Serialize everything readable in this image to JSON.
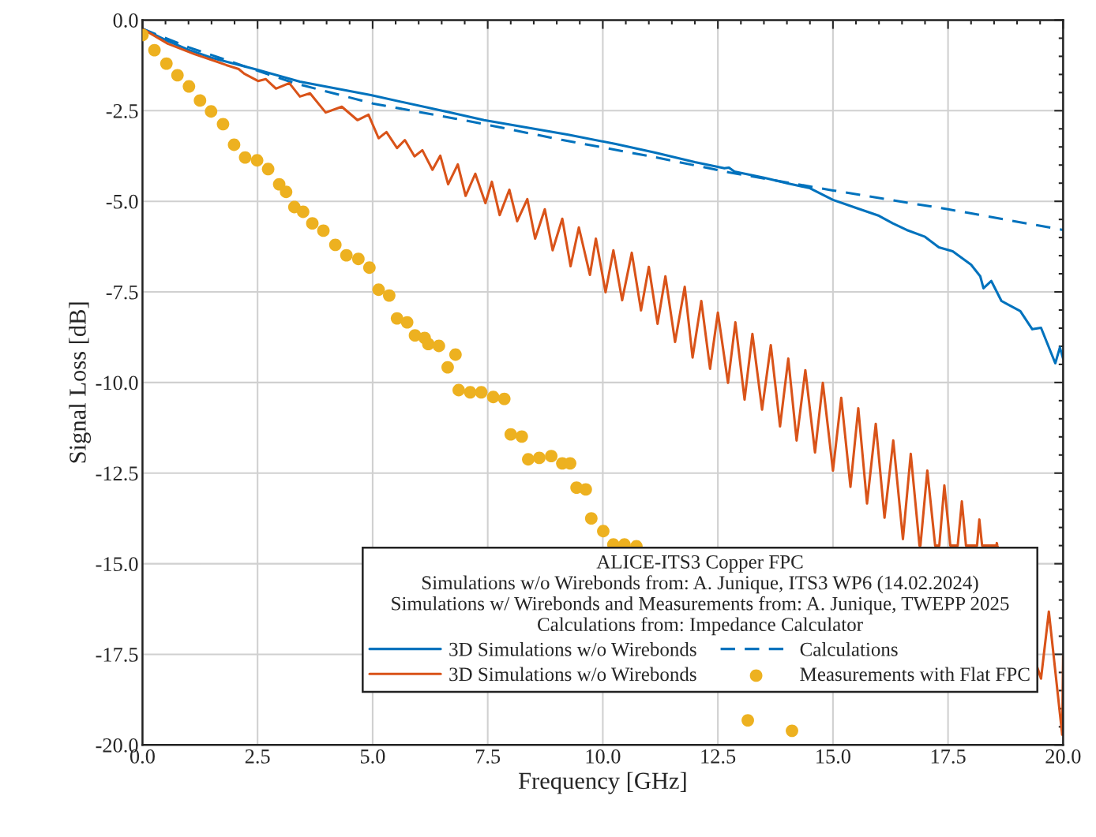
{
  "chart_data": {
    "type": "line",
    "xlabel": "Frequency [GHz]",
    "ylabel": "Signal Loss [dB]",
    "legend_title": "ALICE-ITS3 Copper FPC\nSimulations w/o Wirebonds from: A. Junique, ITS3 WP6 (14.02.2024)\nSimulations w/ Wirebonds and Measurements from: A. Junique, TWEPP 2025\nCalculations from: Impedance Calculator",
    "xlim": [
      0,
      20
    ],
    "ylim": [
      -20,
      0
    ],
    "xticks": [
      {
        "value": 0,
        "label": "0.0"
      },
      {
        "value": 2.5,
        "label": "2.5"
      },
      {
        "value": 5,
        "label": "5.0"
      },
      {
        "value": 7.5,
        "label": "7.5"
      },
      {
        "value": 10,
        "label": "10.0"
      },
      {
        "value": 12.5,
        "label": "12.5"
      },
      {
        "value": 15,
        "label": "15.0"
      },
      {
        "value": 17.5,
        "label": "17.5"
      },
      {
        "value": 20,
        "label": "20.0"
      }
    ],
    "yticks": [
      {
        "value": -20,
        "label": "-20.0"
      },
      {
        "value": -17.5,
        "label": "-17.5"
      },
      {
        "value": -15,
        "label": "-15.0"
      },
      {
        "value": -12.5,
        "label": "-12.5"
      },
      {
        "value": -10,
        "label": "-10.0"
      },
      {
        "value": -7.5,
        "label": "-7.5"
      },
      {
        "value": -5,
        "label": "-5.0"
      },
      {
        "value": -2.5,
        "label": "-2.5"
      },
      {
        "value": 0,
        "label": "0.0"
      }
    ],
    "grid": true,
    "legend": "bottom right",
    "series": [
      {
        "name": "3D Simulations w/o Wirebonds",
        "line_style": "solid",
        "color": "#0072bd",
        "x": [
          0,
          0.5,
          1.0,
          1.5,
          2.5,
          3.42,
          4.96,
          6.68,
          7.42,
          9.25,
          10.28,
          11.14,
          12.0,
          12.64,
          12.74,
          12.86,
          13.5,
          14.0,
          14.5,
          15.0,
          15.5,
          16.0,
          16.3,
          16.6,
          17.0,
          17.3,
          17.6,
          18.0,
          18.2,
          18.27,
          18.44,
          18.66,
          19.07,
          19.33,
          19.52,
          19.83,
          19.93,
          20.0
        ],
        "values": [
          -0.24,
          -0.55,
          -0.82,
          -1.04,
          -1.37,
          -1.7,
          -2.07,
          -2.55,
          -2.76,
          -3.16,
          -3.42,
          -3.66,
          -3.92,
          -4.09,
          -4.07,
          -4.18,
          -4.35,
          -4.5,
          -4.64,
          -4.96,
          -5.18,
          -5.4,
          -5.61,
          -5.79,
          -5.98,
          -6.27,
          -6.38,
          -6.75,
          -7.07,
          -7.4,
          -7.2,
          -7.75,
          -8.03,
          -8.53,
          -8.49,
          -9.47,
          -9.03,
          -9.34
        ]
      },
      {
        "name": "Calculations",
        "line_style": "dashed",
        "color": "#0072bd",
        "x": [
          0,
          1,
          2,
          3.3,
          5,
          6.8,
          7.42,
          9.13,
          11,
          12.74,
          15,
          17.5,
          20
        ],
        "values": [
          -0.24,
          -0.75,
          -1.18,
          -1.74,
          -2.3,
          -2.72,
          -2.87,
          -3.31,
          -3.75,
          -4.2,
          -4.7,
          -5.22,
          -5.79
        ]
      },
      {
        "name": "3D Simulations w/o Wirebonds",
        "line_style": "solid",
        "color": "#d95319",
        "x": [
          0.0,
          0.55,
          1.13,
          1.48,
          1.82,
          2.09,
          2.21,
          2.51,
          2.68,
          2.9,
          3.19,
          3.42,
          3.64,
          3.98,
          4.33,
          4.67,
          4.91,
          5.13,
          5.3,
          5.53,
          5.7,
          5.91,
          6.08,
          6.3,
          6.47,
          6.64,
          6.85,
          7.02,
          7.23,
          7.45,
          7.59,
          7.76,
          7.97,
          8.14,
          8.36,
          8.53,
          8.74,
          8.91,
          9.12,
          9.3,
          9.48,
          9.72,
          9.85,
          10.06,
          10.23,
          10.42,
          10.63,
          10.83,
          11.0,
          11.19,
          11.36,
          11.57,
          11.78,
          11.95,
          12.14,
          12.33,
          12.5,
          12.72,
          12.88,
          13.08,
          13.25,
          13.46,
          13.65,
          13.85,
          14.03,
          14.21,
          14.4,
          14.61,
          14.78,
          15.0,
          15.18,
          15.38,
          15.55,
          15.74,
          15.93,
          16.12,
          16.31,
          16.52,
          16.69,
          16.88,
          16.89,
          16.9,
          17.05,
          17.22,
          17.27,
          17.31,
          17.42,
          17.55,
          17.63,
          17.71,
          17.8,
          17.89,
          18.01,
          18.13,
          18.18,
          18.24,
          18.39,
          18.55,
          18.56,
          18.57,
          18.76,
          19.52,
          19.69,
          19.98,
          20.0
        ],
        "values": [
          -0.24,
          -0.65,
          -0.94,
          -1.09,
          -1.24,
          -1.35,
          -1.48,
          -1.68,
          -1.63,
          -1.89,
          -1.74,
          -2.11,
          -2.02,
          -2.55,
          -2.39,
          -2.76,
          -2.61,
          -3.26,
          -3.09,
          -3.53,
          -3.31,
          -3.76,
          -3.59,
          -4.13,
          -3.74,
          -4.53,
          -3.98,
          -4.85,
          -4.24,
          -5.05,
          -4.46,
          -5.38,
          -4.68,
          -5.55,
          -4.94,
          -6.03,
          -5.22,
          -6.35,
          -5.48,
          -6.79,
          -5.72,
          -7.03,
          -6.03,
          -7.51,
          -6.35,
          -7.73,
          -6.42,
          -8.01,
          -6.81,
          -8.38,
          -7.07,
          -8.88,
          -7.36,
          -9.31,
          -7.75,
          -9.62,
          -8.07,
          -10.01,
          -8.34,
          -10.47,
          -8.66,
          -10.75,
          -8.97,
          -11.21,
          -9.34,
          -11.6,
          -9.66,
          -11.93,
          -10.01,
          -12.43,
          -10.42,
          -12.88,
          -10.71,
          -13.34,
          -11.14,
          -13.73,
          -11.6,
          -14.32,
          -11.97,
          -14.5,
          null,
          -14.5,
          -12.43,
          -14.5,
          null,
          -14.5,
          -12.84,
          -14.5,
          null,
          -14.5,
          -13.28,
          -14.5,
          null,
          -14.5,
          -13.78,
          -14.5,
          null,
          -14.5,
          -14.43,
          -14.5,
          null,
          -18.17,
          -16.32,
          -19.72,
          -17.54
        ]
      },
      {
        "name": "Measurements with Flat FPC",
        "type": "scatter",
        "marker": "circle",
        "color": "#edb120",
        "x": [
          0.0,
          0.26,
          0.52,
          0.76,
          1.01,
          1.25,
          1.49,
          1.75,
          1.99,
          2.23,
          2.49,
          2.73,
          2.97,
          3.12,
          3.3,
          3.49,
          3.69,
          3.93,
          4.19,
          4.43,
          4.69,
          4.93,
          5.13,
          5.36,
          5.53,
          5.75,
          5.92,
          6.13,
          6.21,
          6.44,
          6.63,
          6.8,
          6.87,
          7.12,
          7.36,
          7.62,
          7.86,
          8.0,
          8.24,
          8.38,
          8.62,
          8.88,
          9.12,
          9.29,
          9.43,
          9.63,
          9.75,
          10.01,
          10.23,
          10.47,
          10.73,
          13.15,
          14.11
        ],
        "values": [
          -0.41,
          -0.83,
          -1.2,
          -1.52,
          -1.83,
          -2.22,
          -2.52,
          -2.87,
          -3.44,
          -3.79,
          -3.87,
          -4.11,
          -4.53,
          -4.74,
          -5.16,
          -5.29,
          -5.61,
          -5.81,
          -6.2,
          -6.49,
          -6.59,
          -6.83,
          -7.44,
          -7.6,
          -8.23,
          -8.34,
          -8.7,
          -8.77,
          -8.94,
          -8.99,
          -9.58,
          -9.23,
          -10.21,
          -10.27,
          -10.27,
          -10.4,
          -10.45,
          -11.43,
          -11.49,
          -12.12,
          -12.08,
          -12.03,
          -12.23,
          -12.23,
          -12.9,
          -12.95,
          -13.75,
          -14.1,
          -14.47,
          -14.47,
          -14.52,
          -19.32,
          -19.61
        ]
      }
    ]
  }
}
